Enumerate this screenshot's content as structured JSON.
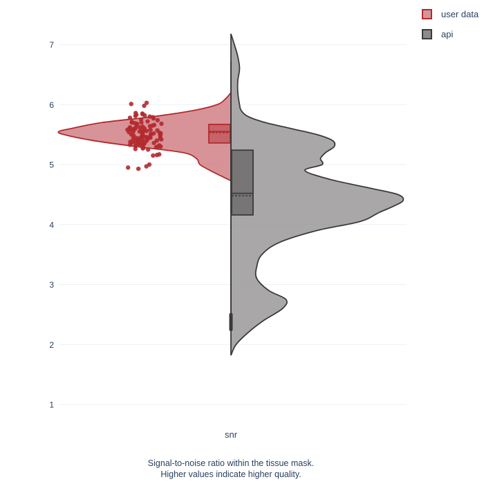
{
  "chart_data": {
    "type": "violin",
    "x_category": "snr",
    "ylim": [
      0.6,
      7.4
    ],
    "y_ticks": [
      "1",
      "2",
      "3",
      "4",
      "5",
      "6",
      "7"
    ],
    "grid": true,
    "legend_position": "top-right",
    "caption": [
      "Signal-to-noise ratio within the tissue mask.",
      "Higher values indicate higher quality."
    ],
    "series": [
      {
        "name": "user data",
        "side": "negative",
        "fill_color": "#c96a70",
        "line_color": "#b22a2e",
        "density_profile": [
          [
            4.73,
            0.0
          ],
          [
            4.8,
            0.05
          ],
          [
            4.9,
            0.12
          ],
          [
            5.0,
            0.18
          ],
          [
            5.1,
            0.2
          ],
          [
            5.2,
            0.28
          ],
          [
            5.3,
            0.55
          ],
          [
            5.4,
            0.8
          ],
          [
            5.5,
            0.97
          ],
          [
            5.55,
            1.0
          ],
          [
            5.6,
            0.93
          ],
          [
            5.7,
            0.75
          ],
          [
            5.8,
            0.45
          ],
          [
            5.9,
            0.22
          ],
          [
            6.0,
            0.08
          ],
          [
            6.1,
            0.03
          ],
          [
            6.2,
            0.0
          ]
        ],
        "box": {
          "q1": 5.36,
          "median": 5.55,
          "q3": 5.67,
          "mean": 5.53,
          "whisker_low": 4.92,
          "whisker_high": 6.02
        },
        "points": [
          5.98,
          6.03,
          6.01,
          5.86,
          5.84,
          5.82,
          5.78,
          5.74,
          5.72,
          5.7,
          5.68,
          5.66,
          5.64,
          5.62,
          5.6,
          5.6,
          5.58,
          5.58,
          5.56,
          5.56,
          5.55,
          5.54,
          5.53,
          5.52,
          5.5,
          5.5,
          5.49,
          5.48,
          5.47,
          5.46,
          5.45,
          5.44,
          5.43,
          5.42,
          5.41,
          5.4,
          5.39,
          5.38,
          5.37,
          5.36,
          5.35,
          5.34,
          5.33,
          5.32,
          5.31,
          5.3,
          5.28,
          5.26,
          5.25,
          5.75,
          5.77,
          5.8,
          5.71,
          5.69,
          5.63,
          5.61,
          5.59,
          5.57,
          5.51,
          5.46,
          5.44,
          5.42,
          5.38,
          5.35,
          5.32,
          5.29,
          5.27,
          5.85,
          5.83,
          5.81,
          5.79,
          5.7,
          5.65,
          5.52,
          5.4,
          5.3,
          5.17,
          5.16,
          5.15,
          5.0,
          4.97,
          4.95,
          4.93,
          5.55,
          5.6,
          5.45,
          5.5,
          5.65,
          5.35,
          5.48,
          5.58,
          5.62,
          5.42,
          5.52,
          5.38,
          5.68,
          5.33,
          5.57,
          5.44,
          5.47
        ]
      },
      {
        "name": "api",
        "side": "positive",
        "fill_color": "#9a9898",
        "line_color": "#3a3a3a",
        "density_profile": [
          [
            1.82,
            0.0
          ],
          [
            2.0,
            0.03
          ],
          [
            2.2,
            0.1
          ],
          [
            2.4,
            0.19
          ],
          [
            2.6,
            0.3
          ],
          [
            2.75,
            0.32
          ],
          [
            2.9,
            0.22
          ],
          [
            3.1,
            0.15
          ],
          [
            3.3,
            0.15
          ],
          [
            3.5,
            0.18
          ],
          [
            3.7,
            0.28
          ],
          [
            3.9,
            0.5
          ],
          [
            4.05,
            0.75
          ],
          [
            4.2,
            0.86
          ],
          [
            4.3,
            0.94
          ],
          [
            4.4,
            1.0
          ],
          [
            4.5,
            0.97
          ],
          [
            4.6,
            0.82
          ],
          [
            4.75,
            0.58
          ],
          [
            4.9,
            0.43
          ],
          [
            5.0,
            0.53
          ],
          [
            5.1,
            0.52
          ],
          [
            5.2,
            0.55
          ],
          [
            5.3,
            0.6
          ],
          [
            5.4,
            0.59
          ],
          [
            5.5,
            0.5
          ],
          [
            5.6,
            0.35
          ],
          [
            5.7,
            0.2
          ],
          [
            5.8,
            0.1
          ],
          [
            5.9,
            0.06
          ],
          [
            6.0,
            0.05
          ],
          [
            6.2,
            0.04
          ],
          [
            6.4,
            0.04
          ],
          [
            6.6,
            0.05
          ],
          [
            6.8,
            0.04
          ],
          [
            7.0,
            0.02
          ],
          [
            7.18,
            0.0
          ]
        ],
        "box": {
          "q1": 4.16,
          "median": 4.52,
          "q3": 5.24,
          "mean": 4.48,
          "whisker_low": 2.27,
          "whisker_high": 6.72
        },
        "outlier_cluster": [
          2.25,
          2.5
        ]
      }
    ]
  },
  "legend": {
    "items": [
      {
        "label": "user data",
        "fill": "#d39599",
        "stroke": "#b22a2e"
      },
      {
        "label": "api",
        "fill": "#8c8b8b",
        "stroke": "#3a3a3a"
      }
    ]
  }
}
